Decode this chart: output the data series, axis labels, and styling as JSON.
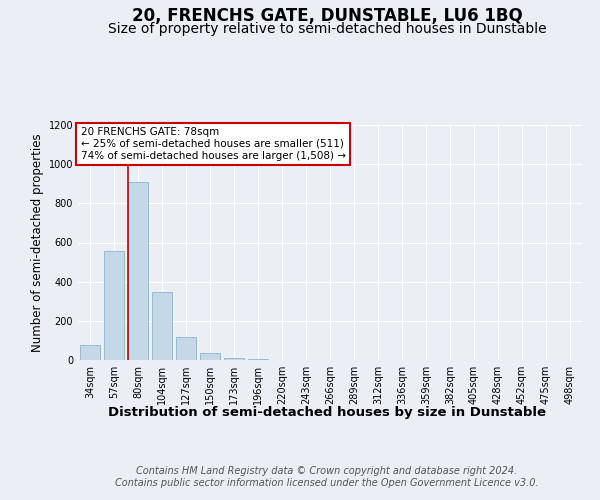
{
  "title": "20, FRENCHS GATE, DUNSTABLE, LU6 1BQ",
  "subtitle": "Size of property relative to semi-detached houses in Dunstable",
  "xlabel": "Distribution of semi-detached houses by size in Dunstable",
  "ylabel": "Number of semi-detached properties",
  "bar_labels": [
    "34sqm",
    "57sqm",
    "80sqm",
    "104sqm",
    "127sqm",
    "150sqm",
    "173sqm",
    "196sqm",
    "220sqm",
    "243sqm",
    "266sqm",
    "289sqm",
    "312sqm",
    "336sqm",
    "359sqm",
    "382sqm",
    "405sqm",
    "428sqm",
    "452sqm",
    "475sqm",
    "498sqm"
  ],
  "bar_values": [
    75,
    555,
    910,
    345,
    115,
    35,
    12,
    4,
    0,
    0,
    0,
    0,
    0,
    0,
    0,
    0,
    0,
    0,
    0,
    0,
    0
  ],
  "bar_color": "#c5d8e8",
  "bar_edge_color": "#7aaec8",
  "vline_color": "#cc0000",
  "vline_x_index": 2,
  "annotation_text": "20 FRENCHS GATE: 78sqm\n← 25% of semi-detached houses are smaller (511)\n74% of semi-detached houses are larger (1,508) →",
  "annotation_box_color": "#cc0000",
  "ylim": [
    0,
    1200
  ],
  "yticks": [
    0,
    200,
    400,
    600,
    800,
    1000,
    1200
  ],
  "bg_color": "#eaeff5",
  "plot_bg_color": "#eaeff5",
  "footer_text": "Contains HM Land Registry data © Crown copyright and database right 2024.\nContains public sector information licensed under the Open Government Licence v3.0.",
  "title_fontsize": 12,
  "subtitle_fontsize": 10,
  "xlabel_fontsize": 9.5,
  "ylabel_fontsize": 8.5,
  "footer_fontsize": 7,
  "tick_label_fontsize": 7
}
